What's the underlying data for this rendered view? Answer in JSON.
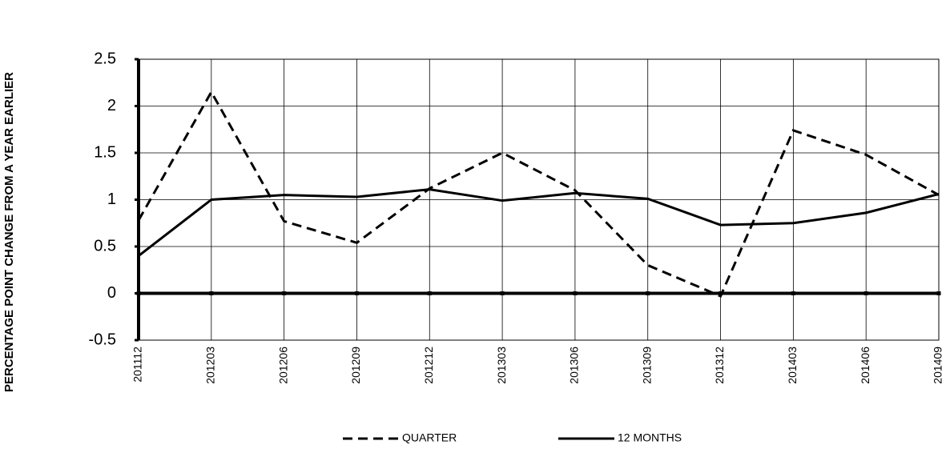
{
  "chart_data": {
    "type": "line",
    "y_label": "PERCENTAGE POINT CHANGE FROM A YEAR EARLIER",
    "categories": [
      "201112",
      "201203",
      "201206",
      "201209",
      "201212",
      "201303",
      "201306",
      "201309",
      "201312",
      "201403",
      "201406",
      "201409"
    ],
    "series": [
      {
        "name": "QUARTER",
        "color": "#000000",
        "line_style": "dashed",
        "values": [
          0.78,
          2.15,
          0.77,
          0.54,
          1.12,
          1.5,
          1.1,
          0.3,
          -0.03,
          1.74,
          1.48,
          1.05
        ]
      },
      {
        "name": "12 MONTHS",
        "color": "#000000",
        "line_style": "solid",
        "values": [
          0.4,
          1.0,
          1.05,
          1.03,
          1.11,
          0.99,
          1.07,
          1.01,
          0.73,
          0.75,
          0.86,
          1.06
        ]
      }
    ],
    "ylim": [
      -0.5,
      2.5
    ],
    "yticks": [
      -0.5,
      0,
      0.5,
      1,
      1.5,
      2,
      2.5
    ],
    "grid": true,
    "legend": "bottom"
  }
}
